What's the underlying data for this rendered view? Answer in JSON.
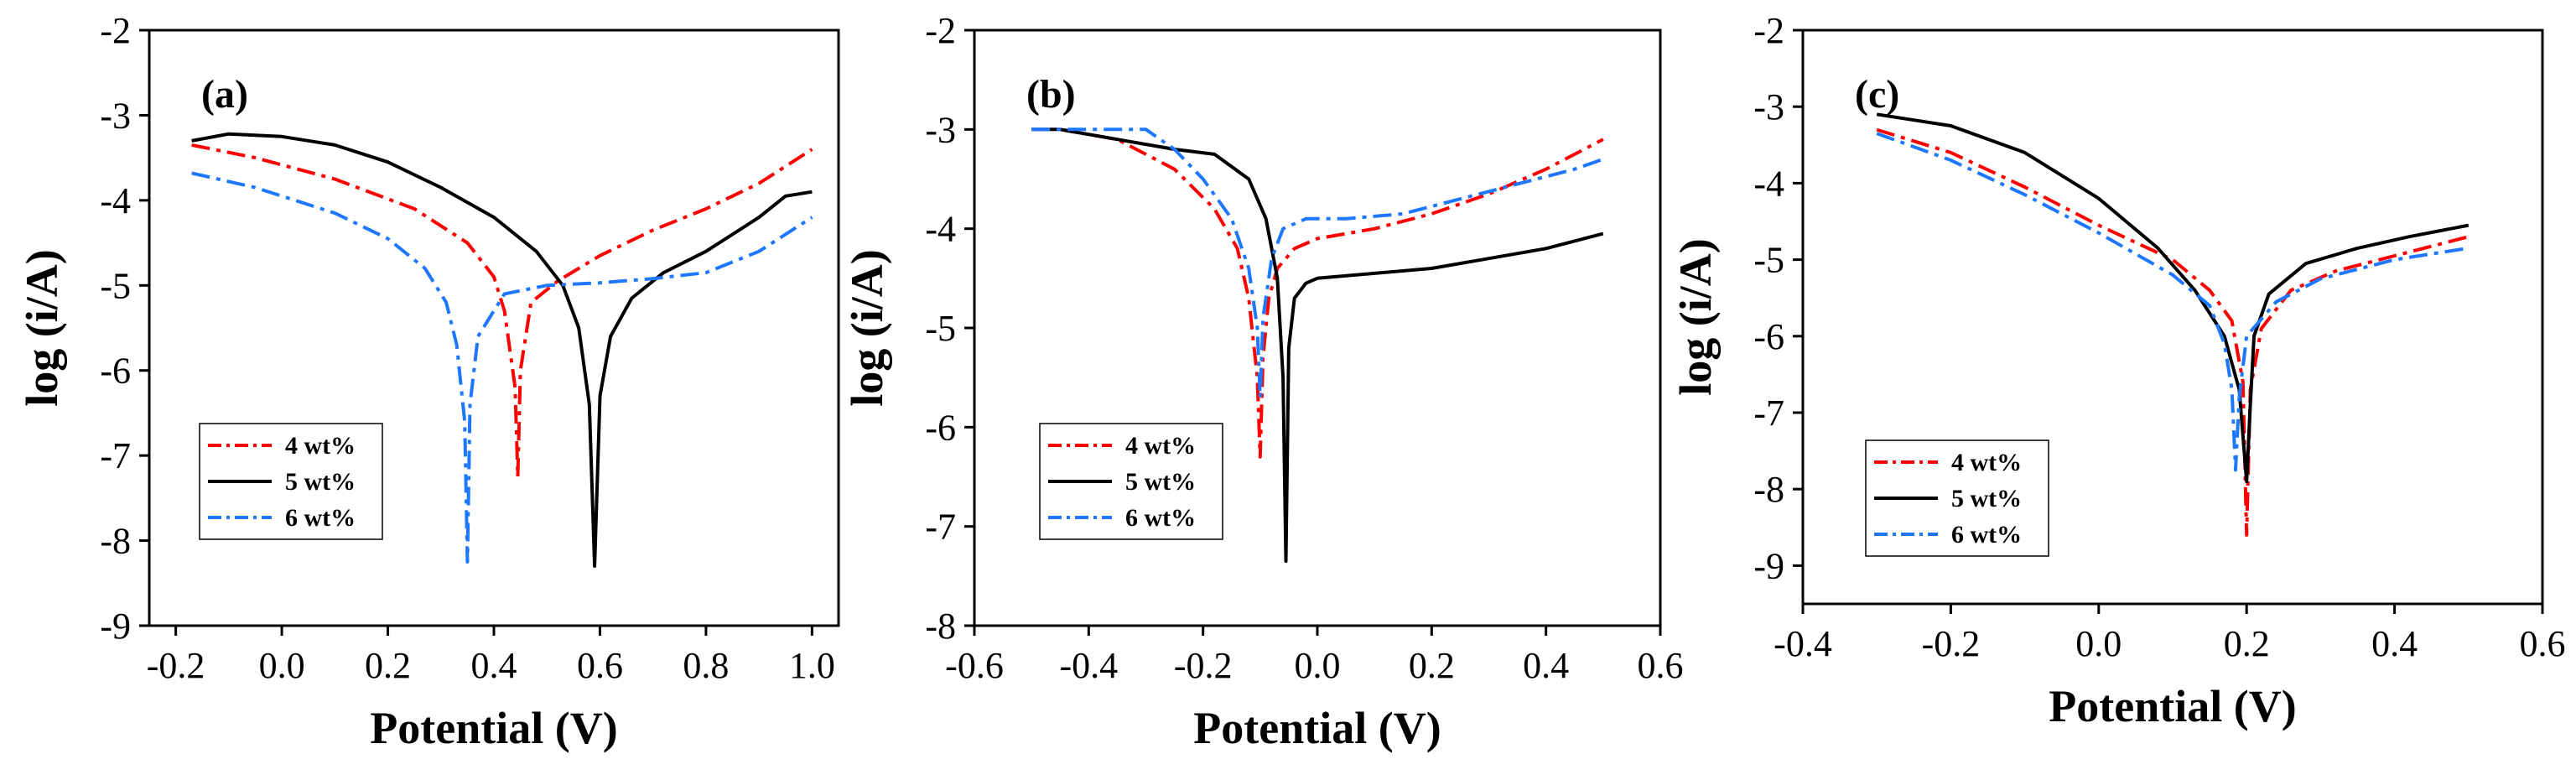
{
  "chart_data": [
    {
      "type": "line",
      "panel_label": "(a)",
      "xlabel": "Potential (V)",
      "ylabel": "log (i/A)",
      "xlim": [
        -0.25,
        1.05
      ],
      "ylim": [
        -9,
        -2
      ],
      "xticks": [
        -0.2,
        0.0,
        0.2,
        0.4,
        0.6,
        0.8,
        1.0
      ],
      "xtick_labels": [
        "-0.2",
        "0.0",
        "0.2",
        "0.4",
        "0.6",
        "0.8",
        "1.0"
      ],
      "yticks": [
        -9,
        -8,
        -7,
        -6,
        -5,
        -4,
        -3,
        -2
      ],
      "ytick_labels": [
        "-9",
        "-8",
        "-7",
        "-6",
        "-5",
        "-4",
        "-3",
        "-2"
      ],
      "legend_position": "bottom-left",
      "series": [
        {
          "name": "4 wt%",
          "color": "#ff0000",
          "dash": "dashdot",
          "x": [
            -0.17,
            -0.05,
            0.1,
            0.25,
            0.35,
            0.4,
            0.42,
            0.44,
            0.445,
            0.45,
            0.47,
            0.52,
            0.6,
            0.7,
            0.8,
            0.9,
            1.0
          ],
          "y": [
            -3.35,
            -3.5,
            -3.75,
            -4.1,
            -4.5,
            -4.9,
            -5.3,
            -6.2,
            -7.25,
            -6.0,
            -5.2,
            -4.95,
            -4.65,
            -4.35,
            -4.1,
            -3.8,
            -3.4
          ]
        },
        {
          "name": "5 wt%",
          "color": "#000000",
          "dash": "solid",
          "x": [
            -0.17,
            -0.1,
            0.0,
            0.1,
            0.2,
            0.3,
            0.4,
            0.48,
            0.53,
            0.56,
            0.58,
            0.59,
            0.6,
            0.62,
            0.66,
            0.72,
            0.8,
            0.9,
            0.95,
            1.0
          ],
          "y": [
            -3.3,
            -3.22,
            -3.25,
            -3.35,
            -3.55,
            -3.85,
            -4.2,
            -4.6,
            -5.0,
            -5.5,
            -6.4,
            -8.3,
            -6.3,
            -5.6,
            -5.15,
            -4.85,
            -4.6,
            -4.2,
            -3.95,
            -3.9
          ]
        },
        {
          "name": "6 wt%",
          "color": "#1e78ff",
          "dash": "dashdot",
          "x": [
            -0.17,
            -0.05,
            0.1,
            0.2,
            0.27,
            0.31,
            0.33,
            0.345,
            0.35,
            0.355,
            0.37,
            0.42,
            0.5,
            0.6,
            0.7,
            0.8,
            0.9,
            1.0
          ],
          "y": [
            -3.68,
            -3.85,
            -4.15,
            -4.45,
            -4.8,
            -5.2,
            -5.7,
            -6.6,
            -8.25,
            -6.4,
            -5.6,
            -5.1,
            -5.0,
            -4.97,
            -4.92,
            -4.85,
            -4.6,
            -4.2
          ]
        }
      ]
    },
    {
      "type": "line",
      "panel_label": "(b)",
      "xlabel": "Potential (V)",
      "ylabel": "log (i/A)",
      "xlim": [
        -0.6,
        0.6
      ],
      "ylim": [
        -8,
        -2
      ],
      "xticks": [
        -0.6,
        -0.4,
        -0.2,
        0.0,
        0.2,
        0.4,
        0.6
      ],
      "xtick_labels": [
        "-0.6",
        "-0.4",
        "-0.2",
        "0.0",
        "0.2",
        "0.4",
        "0.6"
      ],
      "yticks": [
        -8,
        -7,
        -6,
        -5,
        -4,
        -3,
        -2
      ],
      "ytick_labels": [
        "-8",
        "-7",
        "-6",
        "-5",
        "-4",
        "-3",
        "-2"
      ],
      "legend_position": "bottom-left",
      "series": [
        {
          "name": "4 wt%",
          "color": "#ff0000",
          "dash": "dashdot",
          "x": [
            -0.45,
            -0.35,
            -0.25,
            -0.18,
            -0.14,
            -0.12,
            -0.105,
            -0.1,
            -0.095,
            -0.085,
            -0.07,
            -0.04,
            0.0,
            0.1,
            0.2,
            0.3,
            0.4,
            0.5
          ],
          "y": [
            -3.0,
            -3.1,
            -3.4,
            -3.8,
            -4.2,
            -4.7,
            -5.5,
            -6.3,
            -5.3,
            -4.7,
            -4.4,
            -4.2,
            -4.1,
            -4.0,
            -3.85,
            -3.65,
            -3.4,
            -3.1
          ]
        },
        {
          "name": "5 wt%",
          "color": "#000000",
          "dash": "solid",
          "x": [
            -0.5,
            -0.45,
            -0.35,
            -0.25,
            -0.18,
            -0.12,
            -0.09,
            -0.07,
            -0.06,
            -0.055,
            -0.05,
            -0.04,
            -0.02,
            0.0,
            0.1,
            0.2,
            0.3,
            0.4,
            0.5
          ],
          "y": [
            -3.0,
            -3.0,
            -3.1,
            -3.2,
            -3.25,
            -3.5,
            -3.9,
            -4.5,
            -5.5,
            -7.35,
            -5.2,
            -4.7,
            -4.55,
            -4.5,
            -4.45,
            -4.4,
            -4.3,
            -4.2,
            -4.05
          ]
        },
        {
          "name": "6 wt%",
          "color": "#1e78ff",
          "dash": "dashdot",
          "x": [
            -0.5,
            -0.3,
            -0.25,
            -0.2,
            -0.15,
            -0.12,
            -0.105,
            -0.1,
            -0.095,
            -0.08,
            -0.06,
            -0.02,
            0.05,
            0.15,
            0.25,
            0.35,
            0.45,
            0.5
          ],
          "y": [
            -3.0,
            -3.0,
            -3.2,
            -3.5,
            -3.9,
            -4.4,
            -5.0,
            -5.7,
            -4.9,
            -4.3,
            -4.0,
            -3.9,
            -3.9,
            -3.85,
            -3.7,
            -3.55,
            -3.4,
            -3.3
          ]
        }
      ]
    },
    {
      "type": "line",
      "panel_label": "(c)",
      "xlabel": "Potential (V)",
      "ylabel": "log (i/A)",
      "xlim": [
        -0.4,
        0.6
      ],
      "ylim": [
        -9.5,
        -2
      ],
      "xticks": [
        -0.4,
        -0.2,
        0.0,
        0.2,
        0.4,
        0.6
      ],
      "xtick_labels": [
        "-0.4",
        "-0.2",
        "0.0",
        "0.2",
        "0.4",
        "0.6"
      ],
      "yticks": [
        -9,
        -8,
        -7,
        -6,
        -5,
        -4,
        -3,
        -2
      ],
      "ytick_labels": [
        "-9",
        "-8",
        "-7",
        "-6",
        "-5",
        "-4",
        "-3",
        "-2"
      ],
      "legend_position": "bottom-left",
      "series": [
        {
          "name": "4 wt%",
          "color": "#ff0000",
          "dash": "dashdot",
          "x": [
            -0.3,
            -0.2,
            -0.1,
            0.0,
            0.1,
            0.15,
            0.18,
            0.195,
            0.2,
            0.205,
            0.22,
            0.26,
            0.32,
            0.4,
            0.5
          ],
          "y": [
            -3.3,
            -3.6,
            -4.05,
            -4.55,
            -5.0,
            -5.4,
            -5.8,
            -6.6,
            -8.6,
            -6.7,
            -5.9,
            -5.4,
            -5.15,
            -4.95,
            -4.7
          ]
        },
        {
          "name": "5 wt%",
          "color": "#000000",
          "dash": "solid",
          "x": [
            -0.3,
            -0.2,
            -0.1,
            0.0,
            0.08,
            0.13,
            0.17,
            0.19,
            0.2,
            0.205,
            0.21,
            0.23,
            0.28,
            0.35,
            0.42,
            0.5
          ],
          "y": [
            -3.1,
            -3.25,
            -3.6,
            -4.2,
            -4.85,
            -5.4,
            -6.0,
            -6.7,
            -7.9,
            -6.9,
            -6.0,
            -5.45,
            -5.05,
            -4.85,
            -4.7,
            -4.55
          ]
        },
        {
          "name": "6 wt%",
          "color": "#1e78ff",
          "dash": "dashdot",
          "x": [
            -0.3,
            -0.2,
            -0.1,
            0.0,
            0.1,
            0.15,
            0.17,
            0.18,
            0.185,
            0.19,
            0.2,
            0.24,
            0.3,
            0.4,
            0.5
          ],
          "y": [
            -3.35,
            -3.7,
            -4.15,
            -4.65,
            -5.2,
            -5.6,
            -6.1,
            -6.7,
            -7.75,
            -6.8,
            -6.0,
            -5.55,
            -5.25,
            -5.0,
            -4.85
          ]
        }
      ]
    }
  ]
}
